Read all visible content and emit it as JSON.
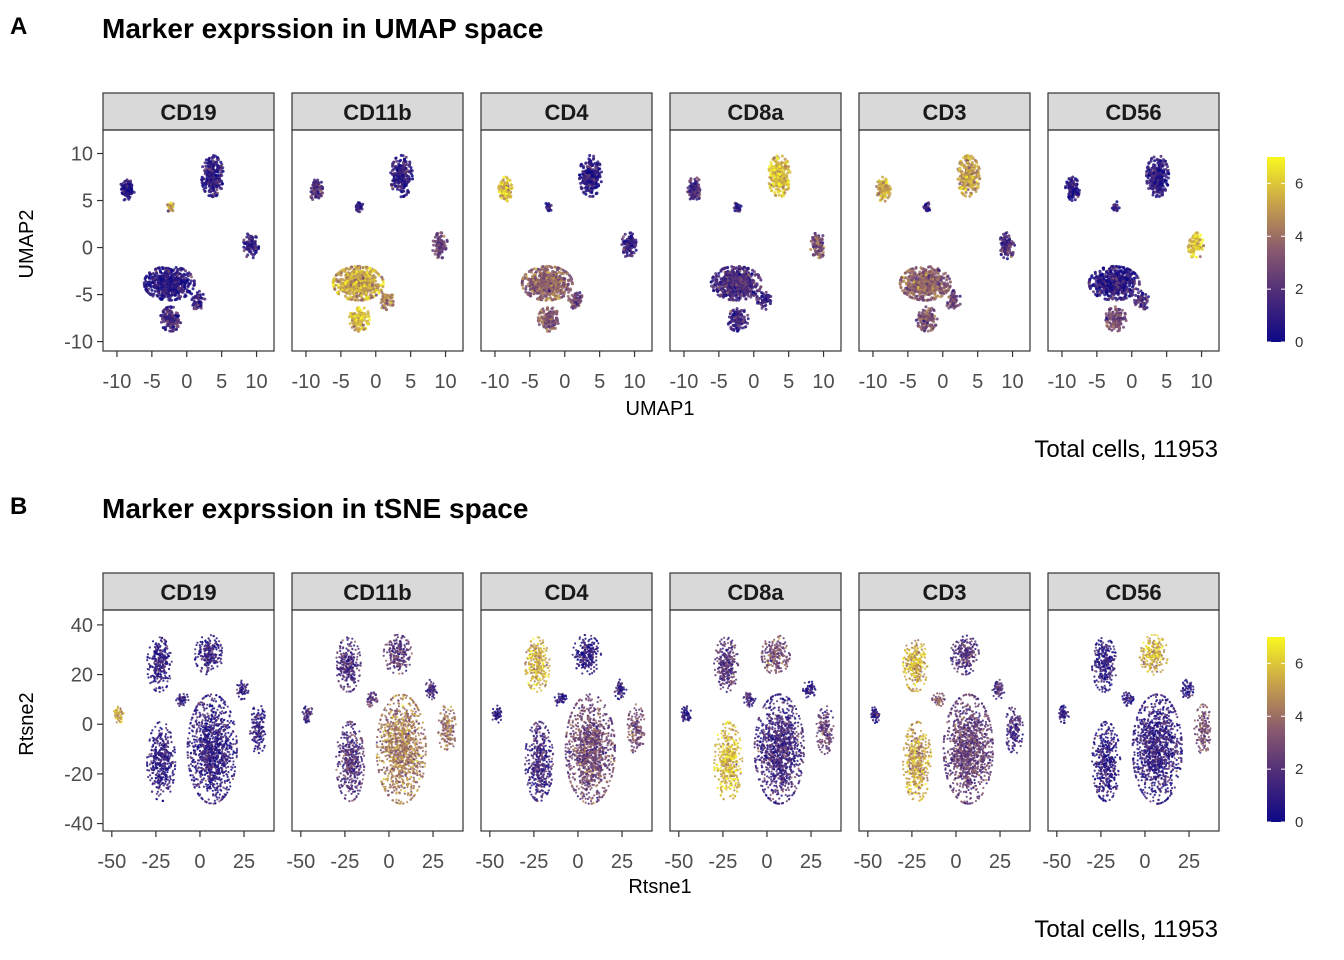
{
  "colors": {
    "low": "#0d0887",
    "mid_low": "#4b2a7a",
    "mid": "#8a5a6e",
    "mid_high": "#c8a24a",
    "high": "#f9f921",
    "strip_fill": "#d9d9d9"
  },
  "chart_data": [
    {
      "type": "scatter",
      "panel_label": "A",
      "title": "Marker exprssion in UMAP space",
      "xlabel": "UMAP1",
      "ylabel": "UMAP2",
      "caption": "Total cells, 11953",
      "facets": [
        "CD19",
        "CD11b",
        "CD4",
        "CD8a",
        "CD3",
        "CD56"
      ],
      "xlim": [
        -12,
        12.5
      ],
      "ylim": [
        -11,
        12.5
      ],
      "x_ticks": [
        -10,
        -5,
        0,
        5,
        10
      ],
      "x_tick_labels": [
        "-10",
        "-5",
        "0",
        "5",
        "10"
      ],
      "y_ticks": [
        10,
        5,
        0,
        -5,
        -10
      ],
      "y_tick_labels": [
        "10",
        "5",
        "0",
        "-5",
        "-10"
      ],
      "color_scale": {
        "min": 0,
        "max": 7,
        "ticks": [
          6,
          4,
          2,
          0
        ],
        "tick_labels": [
          "6",
          "4",
          "2",
          "0"
        ]
      },
      "clusters": [
        {
          "x": -8.5,
          "y": 6.2,
          "rx": 1.0,
          "ry": 1.3,
          "n": 110,
          "expr": [
            0.8,
            1.8,
            5.6,
            1.8,
            5.4,
            0.8
          ]
        },
        {
          "x": -2.3,
          "y": 4.3,
          "rx": 0.5,
          "ry": 0.6,
          "n": 25,
          "expr": [
            5.4,
            1.0,
            0.8,
            1.0,
            0.8,
            0.8
          ]
        },
        {
          "x": 3.7,
          "y": 7.6,
          "rx": 1.6,
          "ry": 2.2,
          "n": 260,
          "expr": [
            0.9,
            1.0,
            0.9,
            5.8,
            5.0,
            0.9
          ]
        },
        {
          "x": 9.2,
          "y": 0.2,
          "rx": 1.1,
          "ry": 1.4,
          "n": 100,
          "expr": [
            1.0,
            2.5,
            1.2,
            3.0,
            1.8,
            5.9
          ]
        },
        {
          "x": -2.5,
          "y": -3.8,
          "rx": 3.6,
          "ry": 1.8,
          "n": 600,
          "expr": [
            0.8,
            5.2,
            3.6,
            1.8,
            3.6,
            0.9
          ]
        },
        {
          "x": -2.3,
          "y": -7.6,
          "rx": 1.5,
          "ry": 1.3,
          "n": 140,
          "expr": [
            1.5,
            5.6,
            3.3,
            1.4,
            3.0,
            3.0
          ]
        },
        {
          "x": 1.5,
          "y": -5.6,
          "rx": 1.1,
          "ry": 1.0,
          "n": 60,
          "expr": [
            1.0,
            4.2,
            2.8,
            1.3,
            2.6,
            1.5
          ]
        }
      ]
    },
    {
      "type": "scatter",
      "panel_label": "B",
      "title": "Marker exprssion in tSNE space",
      "xlabel": "Rtsne1",
      "ylabel": "Rtsne2",
      "caption": "Total cells, 11953",
      "facets": [
        "CD19",
        "CD11b",
        "CD4",
        "CD8a",
        "CD3",
        "CD56"
      ],
      "xlim": [
        -55,
        42
      ],
      "ylim": [
        -43,
        46
      ],
      "x_ticks": [
        -50,
        -25,
        0,
        25
      ],
      "x_tick_labels": [
        "-50",
        "-25",
        "0",
        "25"
      ],
      "y_ticks": [
        40,
        20,
        0,
        -20,
        -40
      ],
      "y_tick_labels": [
        "40",
        "20",
        "0",
        "-20",
        "-40"
      ],
      "color_scale": {
        "min": 0,
        "max": 7,
        "ticks": [
          6,
          4,
          2,
          0
        ],
        "tick_labels": [
          "6",
          "4",
          "2",
          "0"
        ]
      },
      "clusters": [
        {
          "x": -46,
          "y": 4,
          "rx": 3.0,
          "ry": 3.5,
          "n": 60,
          "expr": [
            5.5,
            1.5,
            1.0,
            1.0,
            1.0,
            1.0
          ]
        },
        {
          "x": -23,
          "y": 24,
          "rx": 7.0,
          "ry": 11.0,
          "n": 280,
          "expr": [
            1.0,
            1.8,
            5.5,
            2.0,
            5.4,
            1.0
          ]
        },
        {
          "x": 5,
          "y": 28,
          "rx": 8.0,
          "ry": 8.0,
          "n": 220,
          "expr": [
            1.0,
            2.2,
            1.0,
            2.8,
            2.0,
            5.5
          ]
        },
        {
          "x": 24,
          "y": 14,
          "rx": 3.5,
          "ry": 4.0,
          "n": 60,
          "expr": [
            1.0,
            1.5,
            1.0,
            1.0,
            1.5,
            1.0
          ]
        },
        {
          "x": -22,
          "y": -15,
          "rx": 8.0,
          "ry": 16.0,
          "n": 420,
          "expr": [
            1.0,
            2.0,
            1.5,
            5.8,
            5.2,
            1.0
          ]
        },
        {
          "x": 7,
          "y": -10,
          "rx": 14.0,
          "ry": 22.0,
          "n": 1100,
          "expr": [
            1.0,
            4.3,
            2.8,
            1.5,
            2.5,
            1.2
          ]
        },
        {
          "x": 33,
          "y": -2,
          "rx": 5.0,
          "ry": 10.0,
          "n": 150,
          "expr": [
            1.0,
            4.0,
            3.0,
            2.5,
            1.5,
            3.0
          ]
        },
        {
          "x": -10,
          "y": 10,
          "rx": 3.5,
          "ry": 3.0,
          "n": 50,
          "expr": [
            1.0,
            2.0,
            1.0,
            1.5,
            3.5,
            1.0
          ]
        }
      ]
    }
  ]
}
